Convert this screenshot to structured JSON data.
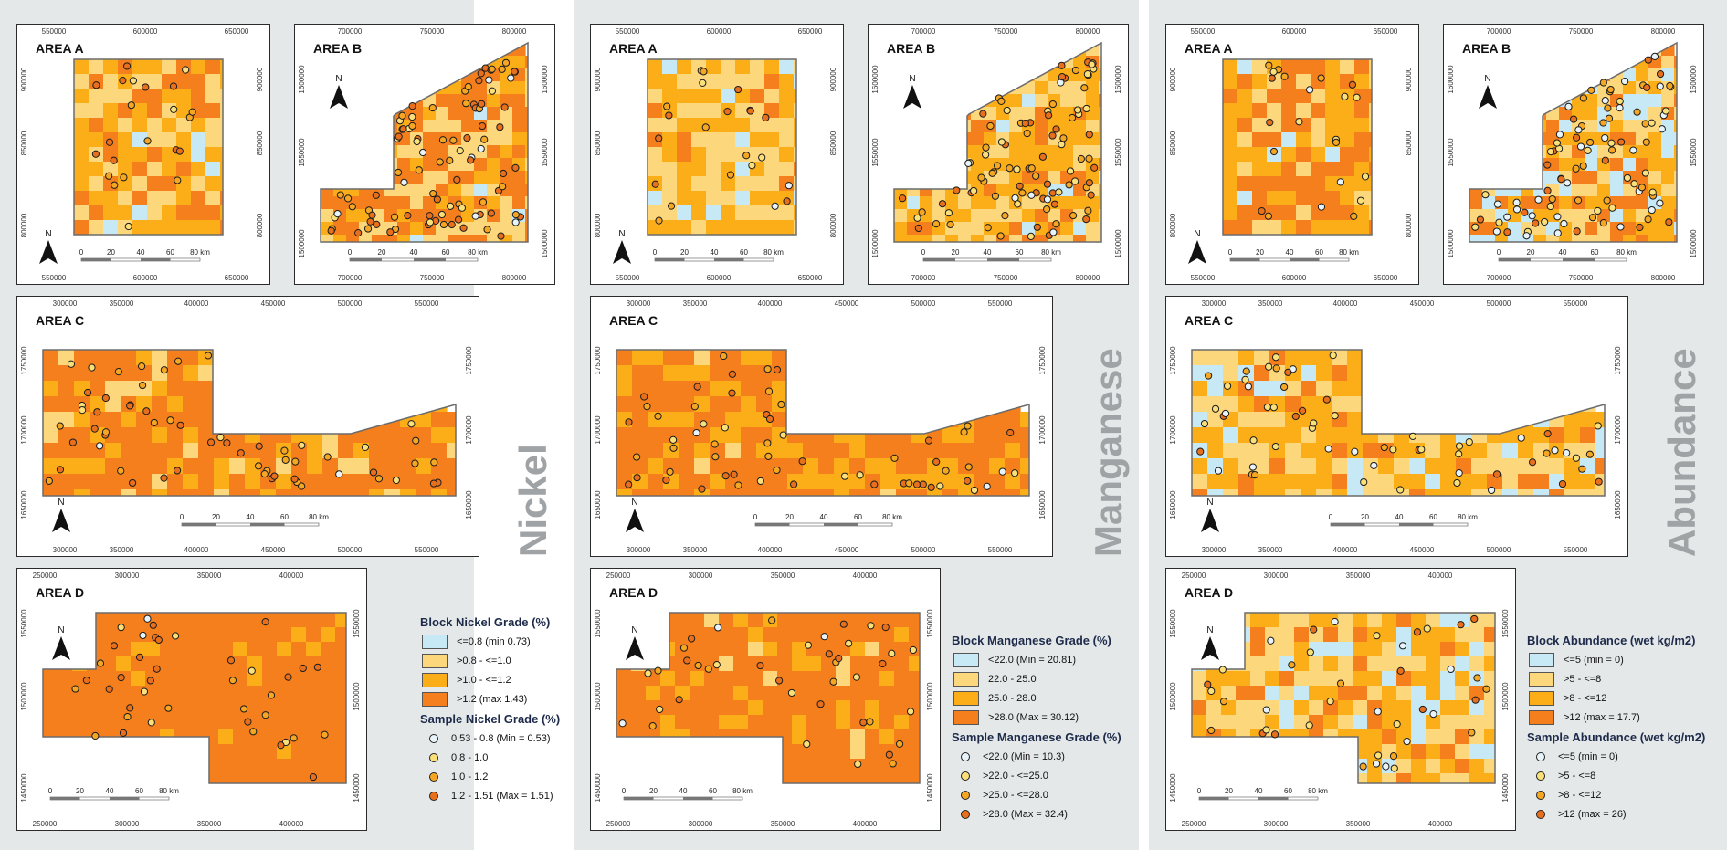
{
  "colors": {
    "c1": "#c7e8f5",
    "c2": "#fdd77c",
    "c3": "#fbae17",
    "c4": "#f47f1c",
    "pt1": "#e8f4fa",
    "pt2": "#fbe07a",
    "pt3": "#f5a623",
    "pt4": "#e8701c"
  },
  "maps": {
    "area_a": "AREA A",
    "area_b": "AREA B",
    "area_c": "AREA C",
    "area_d": "AREA D",
    "north": "N",
    "scale_labels": [
      "0",
      "20",
      "40",
      "60",
      "80 km"
    ]
  },
  "panels": [
    {
      "title": "Nickel",
      "block_title": "Block Nickel Grade (%)",
      "block_items": [
        "<=0.8 (min 0.73)",
        ">0.8 - <=1.0",
        ">1.0 - <=1.2",
        ">1.2 (max 1.43)"
      ],
      "sample_title": "Sample Nickel Grade (%)",
      "sample_items": [
        "0.53 - 0.8 (Min = 0.53)",
        "0.8 - 1.0",
        "1.0 - 1.2",
        "1.2 - 1.51 (Max = 1.51)"
      ]
    },
    {
      "title": "Manganese",
      "block_title": "Block Manganese Grade (%)",
      "block_items": [
        "<22.0 (Min = 20.81)",
        "22.0 - 25.0",
        "25.0 - 28.0",
        ">28.0 (Max = 30.12)"
      ],
      "sample_title": "Sample Manganese Grade (%)",
      "sample_items": [
        "<22.0 (Min = 10.3)",
        ">22.0 - <=25.0",
        ">25.0 - <=28.0",
        ">28.0 (Max = 32.4)"
      ]
    },
    {
      "title": "Abundance",
      "block_title": "Block Abundance (wet kg/m2)",
      "block_items": [
        "<=5 (min = 0)",
        ">5 - <=8",
        ">8 - <=12",
        ">12 (max = 17.7)"
      ],
      "sample_title": "Sample Abundance (wet kg/m2)",
      "sample_items": [
        "<=5 (min = 0)",
        ">5 - <=8",
        ">8 - <=12",
        ">12 (max = 26)"
      ]
    }
  ],
  "axes": {
    "a_x": [
      "550000",
      "600000",
      "650000"
    ],
    "a_y": [
      "900000",
      "850000",
      "800000"
    ],
    "b_x": [
      "700000",
      "750000",
      "800000"
    ],
    "b_y": [
      "1600000",
      "1550000",
      "1500000"
    ],
    "c_x": [
      "300000",
      "350000",
      "400000",
      "450000",
      "500000",
      "550000"
    ],
    "c_y": [
      "1750000",
      "1700000",
      "1650000"
    ],
    "d_x": [
      "250000",
      "300000",
      "350000",
      "400000"
    ],
    "d_y": [
      "1550000",
      "1500000",
      "1450000"
    ]
  }
}
